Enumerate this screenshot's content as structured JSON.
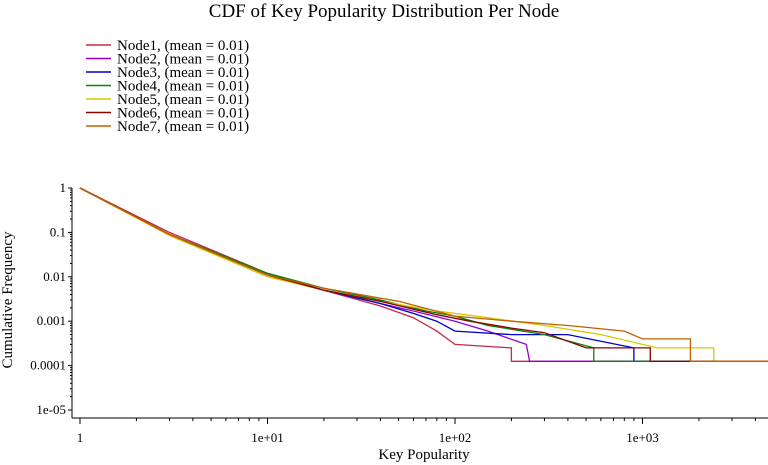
{
  "chart_data": {
    "type": "line",
    "title": "CDF of Key Popularity Distribution Per Node",
    "xlabel": "Key Popularity",
    "ylabel": "Cumulative Frequency",
    "xscale": "log",
    "yscale": "log",
    "xlim": [
      1,
      4800
    ],
    "ylim": [
      1e-05,
      1
    ],
    "x_ticks": [
      {
        "value": 1,
        "label": "1"
      },
      {
        "value": 10,
        "label": "1e+01"
      },
      {
        "value": 100,
        "label": "1e+02"
      },
      {
        "value": 1000,
        "label": "1e+03"
      }
    ],
    "y_ticks": [
      {
        "value": 1,
        "label": "1"
      },
      {
        "value": 0.1,
        "label": "0.1"
      },
      {
        "value": 0.01,
        "label": "0.01"
      },
      {
        "value": 0.001,
        "label": "0.001"
      },
      {
        "value": 0.0001,
        "label": "0.0001"
      },
      {
        "value": 1e-05,
        "label": "1e-05"
      }
    ],
    "legend_position": "top-left",
    "grid": false,
    "series": [
      {
        "name": "Node1, (mean = 0.01)",
        "color": "#c8284a",
        "points": [
          [
            1,
            1
          ],
          [
            3,
            0.1
          ],
          [
            10,
            0.012
          ],
          [
            20,
            0.005
          ],
          [
            40,
            0.0022
          ],
          [
            60,
            0.0012
          ],
          [
            80,
            0.0006
          ],
          [
            100,
            0.0003
          ],
          [
            200,
            0.00025
          ],
          [
            200,
            0.000125
          ],
          [
            4800,
            0.000125
          ]
        ]
      },
      {
        "name": "Node2, (mean = 0.01)",
        "color": "#9400d3",
        "points": [
          [
            1,
            1
          ],
          [
            3,
            0.09
          ],
          [
            10,
            0.011
          ],
          [
            20,
            0.005
          ],
          [
            40,
            0.0025
          ],
          [
            60,
            0.0017
          ],
          [
            100,
            0.001
          ],
          [
            150,
            0.0006
          ],
          [
            240,
            0.0003
          ],
          [
            250,
            0.000125
          ],
          [
            4800,
            0.000125
          ]
        ]
      },
      {
        "name": "Node3, (mean = 0.01)",
        "color": "#0000cc",
        "points": [
          [
            1,
            1
          ],
          [
            3,
            0.09
          ],
          [
            10,
            0.011
          ],
          [
            20,
            0.005
          ],
          [
            40,
            0.0025
          ],
          [
            60,
            0.0015
          ],
          [
            80,
            0.001
          ],
          [
            100,
            0.0006
          ],
          [
            200,
            0.0005
          ],
          [
            400,
            0.0005
          ],
          [
            900,
            0.00025
          ],
          [
            900,
            0.000125
          ],
          [
            4800,
            0.000125
          ]
        ]
      },
      {
        "name": "Node4, (mean = 0.01)",
        "color": "#008800",
        "points": [
          [
            1,
            1
          ],
          [
            3,
            0.09
          ],
          [
            10,
            0.012
          ],
          [
            20,
            0.0055
          ],
          [
            40,
            0.003
          ],
          [
            70,
            0.0017
          ],
          [
            100,
            0.0013
          ],
          [
            150,
            0.0008
          ],
          [
            300,
            0.0005
          ],
          [
            550,
            0.00025
          ],
          [
            550,
            0.000125
          ],
          [
            4800,
            0.000125
          ]
        ]
      },
      {
        "name": "Node5, (mean = 0.01)",
        "color": "#d4c800",
        "points": [
          [
            1,
            1
          ],
          [
            3,
            0.085
          ],
          [
            10,
            0.01
          ],
          [
            20,
            0.005
          ],
          [
            40,
            0.0028
          ],
          [
            80,
            0.0017
          ],
          [
            150,
            0.0012
          ],
          [
            300,
            0.0008
          ],
          [
            600,
            0.0005
          ],
          [
            1200,
            0.00025
          ],
          [
            2400,
            0.00025
          ],
          [
            2400,
            0.000125
          ],
          [
            4800,
            0.000125
          ]
        ]
      },
      {
        "name": "Node6, (mean = 0.01)",
        "color": "#8b0000",
        "points": [
          [
            1,
            1
          ],
          [
            3,
            0.09
          ],
          [
            10,
            0.011
          ],
          [
            20,
            0.005
          ],
          [
            40,
            0.0028
          ],
          [
            80,
            0.0014
          ],
          [
            120,
            0.001
          ],
          [
            200,
            0.0007
          ],
          [
            300,
            0.00055
          ],
          [
            500,
            0.00025
          ],
          [
            1100,
            0.00025
          ],
          [
            1100,
            0.000125
          ],
          [
            4800,
            0.000125
          ]
        ]
      },
      {
        "name": "Node7, (mean = 0.01)",
        "color": "#c06000",
        "points": [
          [
            1,
            1
          ],
          [
            3,
            0.09
          ],
          [
            10,
            0.011
          ],
          [
            20,
            0.0055
          ],
          [
            50,
            0.0028
          ],
          [
            100,
            0.0013
          ],
          [
            200,
            0.001
          ],
          [
            400,
            0.0008
          ],
          [
            800,
            0.0006
          ],
          [
            1000,
            0.0004
          ],
          [
            1800,
            0.0004
          ],
          [
            1800,
            0.000125
          ],
          [
            4800,
            0.000125
          ]
        ]
      }
    ]
  }
}
